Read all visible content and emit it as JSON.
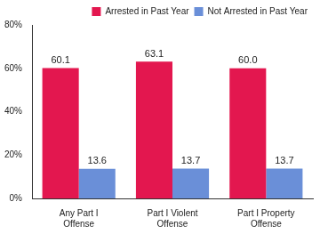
{
  "chart_data": {
    "type": "bar",
    "categories": [
      "Any Part I Offense",
      "Part I Violent Offense",
      "Part I Property Offense"
    ],
    "series": [
      {
        "name": "Arrested in Past Year",
        "color": "#e3174f",
        "values": [
          60.1,
          63.1,
          60.0
        ],
        "value_labels": [
          "60.1",
          "63.1",
          "60.0"
        ]
      },
      {
        "name": "Not Arrested in Past Year",
        "color": "#6a8fd8",
        "values": [
          13.6,
          13.7,
          13.7
        ],
        "value_labels": [
          "13.6",
          "13.7",
          "13.7"
        ]
      }
    ],
    "ylim": [
      0,
      80
    ],
    "yticks": [
      {
        "value": 0,
        "label": "0%"
      },
      {
        "value": 20,
        "label": "20%"
      },
      {
        "value": 40,
        "label": "40%"
      },
      {
        "value": 60,
        "label": "60%"
      },
      {
        "value": 80,
        "label": "80%"
      }
    ],
    "grid": false,
    "legend": "top-right",
    "data_labels": true
  }
}
